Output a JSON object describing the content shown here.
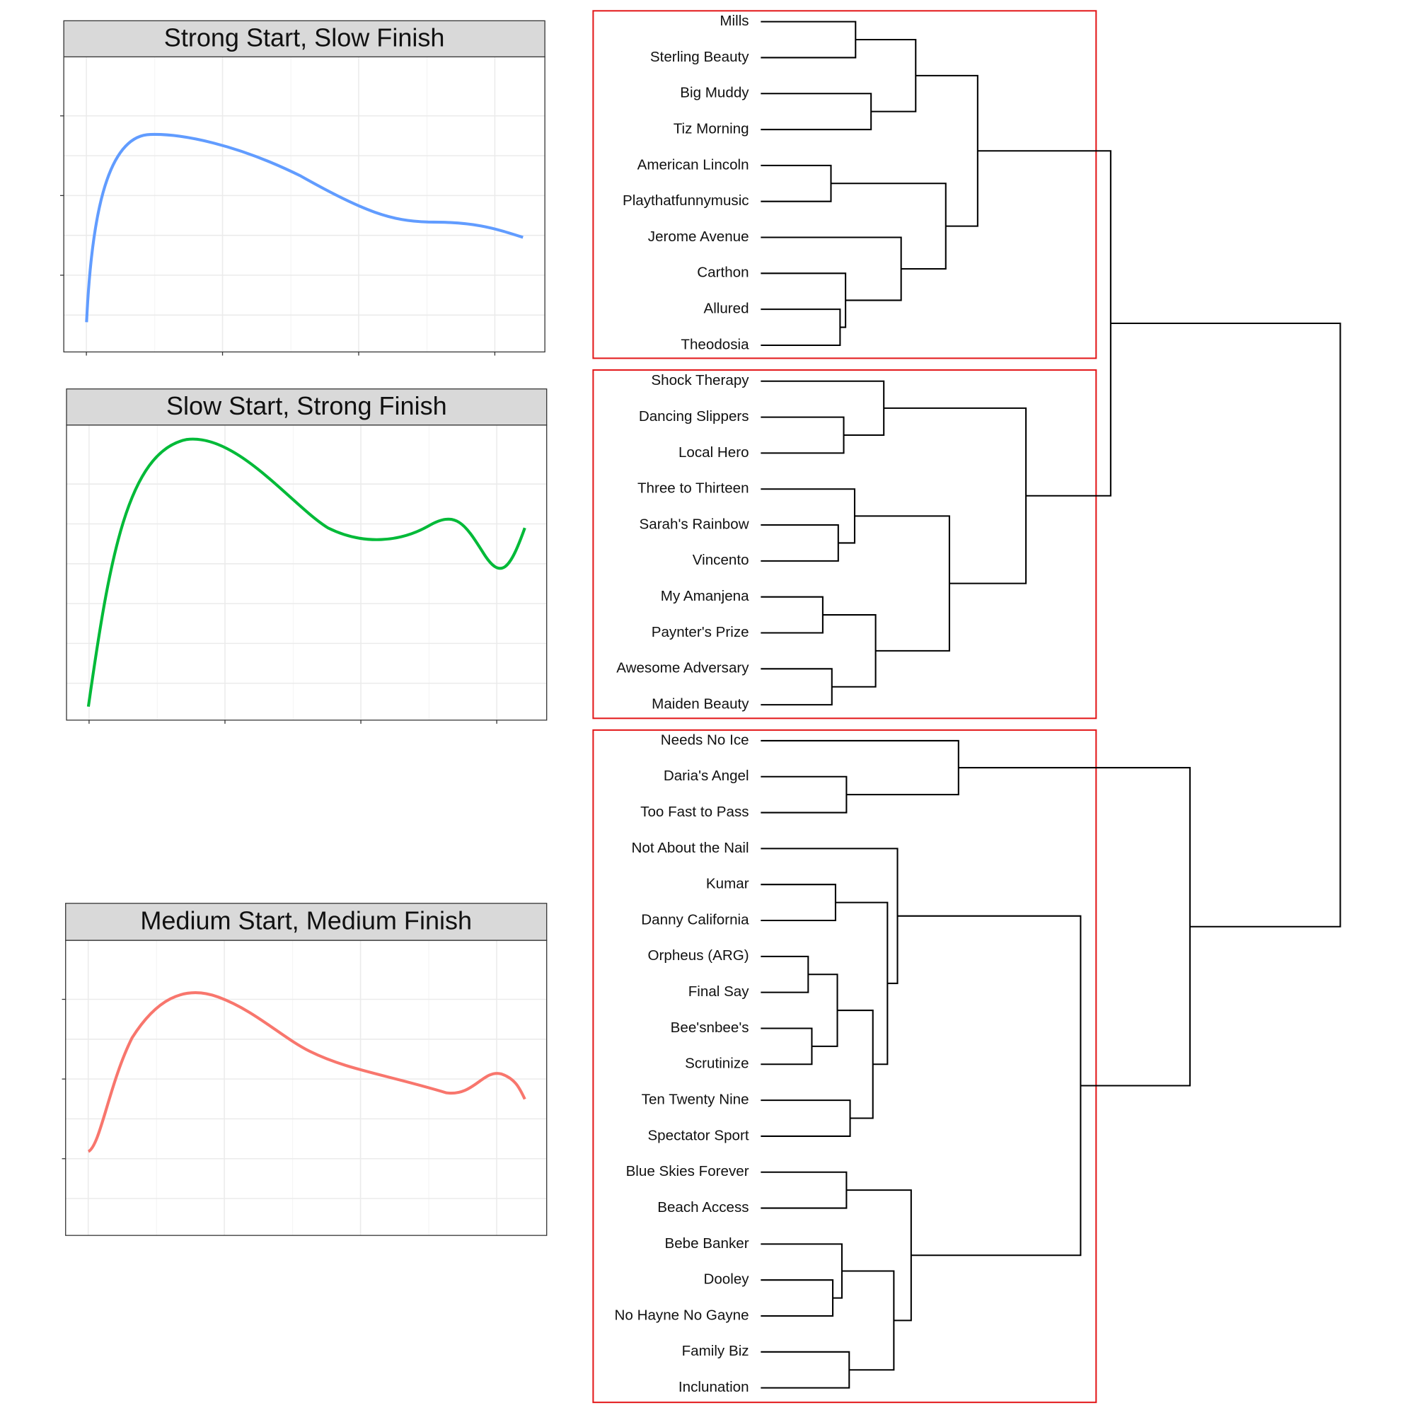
{
  "panels": [
    {
      "title": "Strong Start, Slow Finish"
    },
    {
      "title": "Slow Start, Strong Finish"
    },
    {
      "title": "Medium Start, Medium Finish"
    }
  ],
  "dendrogram": {
    "leaves": [
      "Mills",
      "Sterling Beauty",
      "Big Muddy",
      "Tiz Morning",
      "American Lincoln",
      "Playthatfunnymusic",
      "Jerome Avenue",
      "Carthon",
      "Allured",
      "Theodosia",
      "Shock Therapy",
      "Dancing Slippers",
      "Local Hero",
      "Three to Thirteen",
      "Sarah's Rainbow",
      "Vincento",
      "My Amanjena",
      "Paynter's Prize",
      "Awesome Adversary",
      "Maiden Beauty",
      "Needs No Ice",
      "Daria's Angel",
      "Too Fast to Pass",
      "Not About the Nail",
      "Kumar",
      "Danny California",
      "Orpheus (ARG)",
      "Final Say",
      "Bee'snbee's",
      "Scrutinize",
      "Ten Twenty Nine",
      "Spectator Sport",
      "Blue Skies Forever",
      "Beach Access",
      "Bebe Banker",
      "Dooley",
      "No Hayne No Gayne",
      "Family Biz",
      "Inclunation"
    ]
  }
}
